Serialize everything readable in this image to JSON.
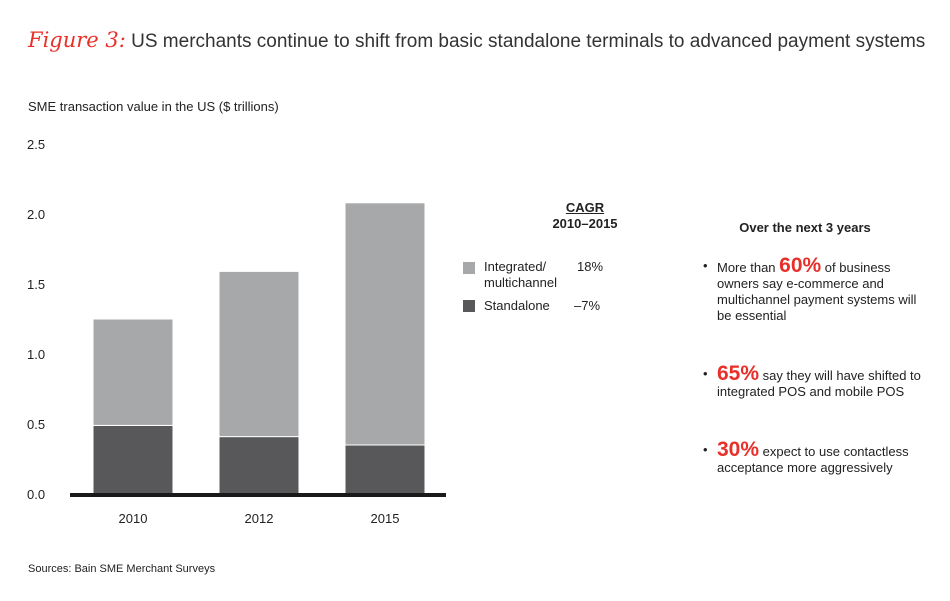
{
  "title": {
    "figure": "Figure 3:",
    "text": "US merchants continue to shift from basic standalone terminals to advanced payment systems"
  },
  "chart_data": {
    "type": "bar",
    "stacked": true,
    "ylabel": "SME transaction value in the US ($ trillions)",
    "ylim": [
      0,
      2.5
    ],
    "yticks": [
      "0.0",
      "0.5",
      "1.0",
      "1.5",
      "2.0",
      "2.5"
    ],
    "categories": [
      "2010",
      "2012",
      "2015"
    ],
    "series": [
      {
        "name": "Standalone",
        "values": [
          0.49,
          0.41,
          0.35
        ],
        "color": "#58585a"
      },
      {
        "name": "Integrated/ multichannel",
        "values": [
          0.76,
          1.18,
          1.73
        ],
        "color": "#a7a8aa"
      }
    ],
    "grid": false
  },
  "legend": {
    "header_line1": "CAGR",
    "header_line2": "2010–2015",
    "items": [
      {
        "label_line1": "Integrated/",
        "label_line2": "multichannel",
        "cagr": "18%",
        "color": "#a7a8aa"
      },
      {
        "label_line1": "Standalone",
        "label_line2": "",
        "cagr": "–7%",
        "color": "#58585a"
      }
    ]
  },
  "sidebar": {
    "heading": "Over the next 3 years",
    "bullets": [
      {
        "pre": "More than ",
        "highlight": "60%",
        "post": " of business owners say e-commerce and multichannel payment systems will be essential"
      },
      {
        "pre": "",
        "highlight": "65%",
        "post": " say they will have shifted to integrated POS and mobile POS"
      },
      {
        "pre": "",
        "highlight": "30%",
        "post": " expect to use contactless acceptance more aggressively"
      }
    ],
    "bullet_symbol": "•"
  },
  "source": "Sources: Bain SME Merchant Surveys",
  "colors": {
    "accent": "#e8302a",
    "standalone": "#58585a",
    "integrated": "#a7a8aa",
    "baseline": "#1a1a1a"
  }
}
